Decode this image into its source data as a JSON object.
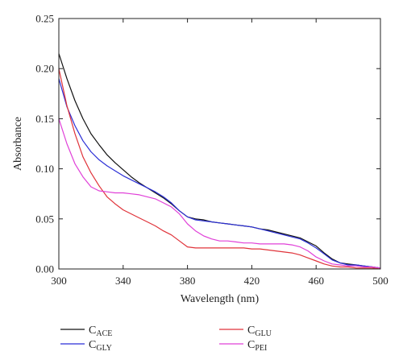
{
  "chart_data": {
    "type": "line",
    "title": "",
    "xlabel": "Wavelength (nm)",
    "ylabel": "Absorbance",
    "xlim": [
      300,
      500
    ],
    "ylim": [
      0,
      0.25
    ],
    "x_ticks": [
      "300",
      "340",
      "380",
      "420",
      "460",
      "500"
    ],
    "y_ticks": [
      "0.00",
      "0.05",
      "0.10",
      "0.15",
      "0.20",
      "0.25"
    ],
    "grid": false,
    "legend_position": "bottom",
    "x": [
      300,
      305,
      310,
      315,
      320,
      325,
      330,
      335,
      340,
      345,
      350,
      355,
      360,
      365,
      370,
      375,
      380,
      385,
      390,
      395,
      400,
      405,
      410,
      415,
      420,
      425,
      430,
      435,
      440,
      445,
      450,
      455,
      460,
      465,
      470,
      475,
      480,
      485,
      490,
      495,
      500
    ],
    "series": [
      {
        "name": "ACE",
        "label_main": "C",
        "label_sub": "ACE",
        "color": "#111111",
        "values": [
          0.215,
          0.19,
          0.168,
          0.15,
          0.135,
          0.124,
          0.114,
          0.106,
          0.099,
          0.092,
          0.086,
          0.081,
          0.076,
          0.071,
          0.065,
          0.058,
          0.052,
          0.05,
          0.049,
          0.047,
          0.046,
          0.045,
          0.044,
          0.043,
          0.042,
          0.04,
          0.039,
          0.037,
          0.035,
          0.033,
          0.031,
          0.027,
          0.023,
          0.016,
          0.01,
          0.006,
          0.005,
          0.004,
          0.003,
          0.002,
          0.001
        ]
      },
      {
        "name": "GLY",
        "label_main": "C",
        "label_sub": "GLY",
        "color": "#2b2fd6",
        "values": [
          0.19,
          0.162,
          0.143,
          0.128,
          0.117,
          0.109,
          0.103,
          0.098,
          0.093,
          0.089,
          0.085,
          0.081,
          0.077,
          0.072,
          0.066,
          0.058,
          0.052,
          0.049,
          0.048,
          0.047,
          0.046,
          0.045,
          0.044,
          0.043,
          0.042,
          0.04,
          0.038,
          0.036,
          0.034,
          0.032,
          0.03,
          0.026,
          0.021,
          0.015,
          0.009,
          0.006,
          0.004,
          0.004,
          0.003,
          0.002,
          0.001
        ]
      },
      {
        "name": "GLU",
        "label_main": "C",
        "label_sub": "GLU",
        "color": "#e0333a",
        "values": [
          0.2,
          0.163,
          0.135,
          0.112,
          0.096,
          0.083,
          0.072,
          0.065,
          0.059,
          0.055,
          0.051,
          0.047,
          0.043,
          0.038,
          0.034,
          0.028,
          0.022,
          0.021,
          0.021,
          0.021,
          0.021,
          0.021,
          0.021,
          0.021,
          0.02,
          0.02,
          0.019,
          0.018,
          0.017,
          0.016,
          0.014,
          0.011,
          0.008,
          0.005,
          0.003,
          0.002,
          0.002,
          0.001,
          0.001,
          0.001,
          0.0
        ]
      },
      {
        "name": "PEI",
        "label_main": "C",
        "label_sub": "PEI",
        "color": "#e040d8",
        "values": [
          0.15,
          0.125,
          0.105,
          0.092,
          0.082,
          0.078,
          0.077,
          0.076,
          0.076,
          0.075,
          0.074,
          0.072,
          0.07,
          0.066,
          0.062,
          0.055,
          0.045,
          0.038,
          0.033,
          0.03,
          0.028,
          0.028,
          0.027,
          0.026,
          0.026,
          0.025,
          0.025,
          0.025,
          0.025,
          0.024,
          0.022,
          0.018,
          0.012,
          0.008,
          0.005,
          0.004,
          0.003,
          0.003,
          0.002,
          0.002,
          0.001
        ]
      }
    ]
  }
}
